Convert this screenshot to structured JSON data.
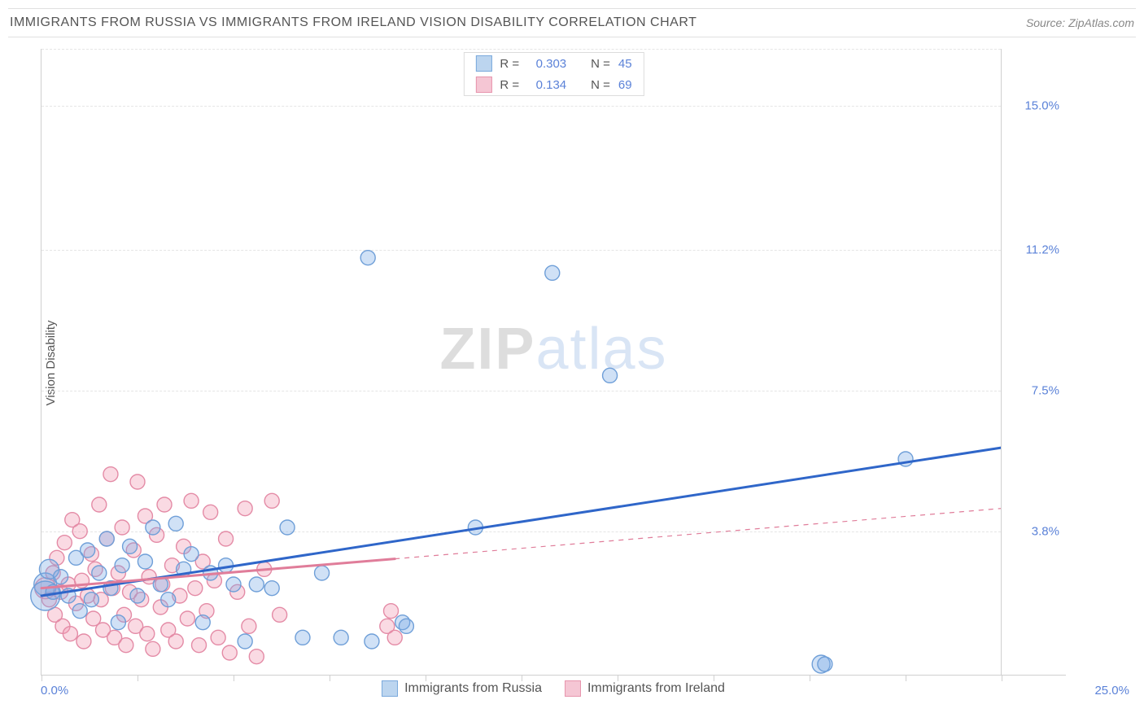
{
  "header": {
    "title": "IMMIGRANTS FROM RUSSIA VS IMMIGRANTS FROM IRELAND VISION DISABILITY CORRELATION CHART",
    "source": "Source: ZipAtlas.com"
  },
  "watermark": {
    "zip": "ZIP",
    "atlas": "atlas"
  },
  "chart": {
    "type": "scatter",
    "y_axis_label": "Vision Disability",
    "background_color": "#ffffff",
    "grid_color": "#e5e5e5",
    "axis_color": "#d0d0d0",
    "text_color": "#555555",
    "value_color": "#5b82d8",
    "xlim": [
      0,
      25
    ],
    "ylim": [
      0,
      16.5
    ],
    "x_tick_positions": [
      0,
      2.5,
      5,
      7.5,
      10,
      12.5,
      15,
      17.5,
      20,
      22.5,
      25
    ],
    "x_min_label": "0.0%",
    "x_max_label": "25.0%",
    "y_gridlines": [
      {
        "value": 3.8,
        "label": "3.8%"
      },
      {
        "value": 7.5,
        "label": "7.5%"
      },
      {
        "value": 11.2,
        "label": "11.2%"
      },
      {
        "value": 15.0,
        "label": "15.0%"
      }
    ],
    "right_pane_width": 80,
    "marker_radius": 9,
    "marker_stroke_width": 1.4,
    "line_width": 3,
    "series": [
      {
        "key": "russia",
        "name": "Immigrants from Russia",
        "fill": "rgba(120,170,230,0.35)",
        "stroke": "#6f9fd8",
        "swatch_fill": "#bcd5ef",
        "swatch_border": "#7aa9dc",
        "r_value": "0.303",
        "n_value": "45",
        "regression": {
          "x1": 0,
          "y1": 2.1,
          "x2": 25,
          "y2": 6.0,
          "solid_until_x": 25,
          "color": "#2f66c9"
        },
        "points": [
          {
            "x": 0.1,
            "y": 2.4,
            "r": 14
          },
          {
            "x": 0.1,
            "y": 2.1,
            "r": 18
          },
          {
            "x": 0.2,
            "y": 2.8,
            "r": 12
          },
          {
            "x": 0.3,
            "y": 2.2
          },
          {
            "x": 0.5,
            "y": 2.6
          },
          {
            "x": 0.7,
            "y": 2.1
          },
          {
            "x": 0.9,
            "y": 3.1
          },
          {
            "x": 1.0,
            "y": 1.7
          },
          {
            "x": 1.2,
            "y": 3.3
          },
          {
            "x": 1.3,
            "y": 2.0
          },
          {
            "x": 1.5,
            "y": 2.7
          },
          {
            "x": 1.7,
            "y": 3.6
          },
          {
            "x": 1.8,
            "y": 2.3
          },
          {
            "x": 2.0,
            "y": 1.4
          },
          {
            "x": 2.1,
            "y": 2.9
          },
          {
            "x": 2.3,
            "y": 3.4
          },
          {
            "x": 2.5,
            "y": 2.1
          },
          {
            "x": 2.7,
            "y": 3.0
          },
          {
            "x": 2.9,
            "y": 3.9
          },
          {
            "x": 3.1,
            "y": 2.4
          },
          {
            "x": 3.3,
            "y": 2.0
          },
          {
            "x": 3.5,
            "y": 4.0
          },
          {
            "x": 3.7,
            "y": 2.8
          },
          {
            "x": 3.9,
            "y": 3.2
          },
          {
            "x": 4.2,
            "y": 1.4
          },
          {
            "x": 4.4,
            "y": 2.7
          },
          {
            "x": 4.8,
            "y": 2.9
          },
          {
            "x": 5.0,
            "y": 2.4
          },
          {
            "x": 5.3,
            "y": 0.9
          },
          {
            "x": 5.6,
            "y": 2.4
          },
          {
            "x": 6.0,
            "y": 2.3
          },
          {
            "x": 6.4,
            "y": 3.9
          },
          {
            "x": 6.8,
            "y": 1.0
          },
          {
            "x": 7.3,
            "y": 2.7
          },
          {
            "x": 7.8,
            "y": 1.0
          },
          {
            "x": 8.5,
            "y": 11.0
          },
          {
            "x": 8.6,
            "y": 0.9
          },
          {
            "x": 9.4,
            "y": 1.4
          },
          {
            "x": 9.5,
            "y": 1.3
          },
          {
            "x": 11.3,
            "y": 3.9
          },
          {
            "x": 13.3,
            "y": 10.6
          },
          {
            "x": 14.8,
            "y": 7.9
          },
          {
            "x": 20.3,
            "y": 0.3,
            "r": 11
          },
          {
            "x": 20.4,
            "y": 0.3
          },
          {
            "x": 22.5,
            "y": 5.7
          }
        ]
      },
      {
        "key": "ireland",
        "name": "Immigrants from Ireland",
        "fill": "rgba(240,150,175,0.35)",
        "stroke": "#e48ba6",
        "swatch_fill": "#f5c6d4",
        "swatch_border": "#e795ad",
        "r_value": "0.134",
        "n_value": "69",
        "regression": {
          "x1": 0,
          "y1": 2.3,
          "x2": 25,
          "y2": 4.4,
          "solid_until_x": 9.2,
          "color": "#e07d9a"
        },
        "points": [
          {
            "x": 0.1,
            "y": 2.3,
            "r": 13
          },
          {
            "x": 0.2,
            "y": 2.0
          },
          {
            "x": 0.3,
            "y": 2.7
          },
          {
            "x": 0.35,
            "y": 1.6
          },
          {
            "x": 0.4,
            "y": 3.1
          },
          {
            "x": 0.5,
            "y": 2.2
          },
          {
            "x": 0.55,
            "y": 1.3
          },
          {
            "x": 0.6,
            "y": 3.5
          },
          {
            "x": 0.7,
            "y": 2.4
          },
          {
            "x": 0.75,
            "y": 1.1
          },
          {
            "x": 0.8,
            "y": 4.1
          },
          {
            "x": 0.9,
            "y": 1.9
          },
          {
            "x": 1.0,
            "y": 3.8
          },
          {
            "x": 1.05,
            "y": 2.5
          },
          {
            "x": 1.1,
            "y": 0.9
          },
          {
            "x": 1.2,
            "y": 2.1
          },
          {
            "x": 1.3,
            "y": 3.2
          },
          {
            "x": 1.35,
            "y": 1.5
          },
          {
            "x": 1.4,
            "y": 2.8
          },
          {
            "x": 1.5,
            "y": 4.5
          },
          {
            "x": 1.55,
            "y": 2.0
          },
          {
            "x": 1.6,
            "y": 1.2
          },
          {
            "x": 1.7,
            "y": 3.6
          },
          {
            "x": 1.8,
            "y": 5.3
          },
          {
            "x": 1.85,
            "y": 2.3
          },
          {
            "x": 1.9,
            "y": 1.0
          },
          {
            "x": 2.0,
            "y": 2.7
          },
          {
            "x": 2.1,
            "y": 3.9
          },
          {
            "x": 2.15,
            "y": 1.6
          },
          {
            "x": 2.2,
            "y": 0.8
          },
          {
            "x": 2.3,
            "y": 2.2
          },
          {
            "x": 2.4,
            "y": 3.3
          },
          {
            "x": 2.45,
            "y": 1.3
          },
          {
            "x": 2.5,
            "y": 5.1
          },
          {
            "x": 2.6,
            "y": 2.0
          },
          {
            "x": 2.7,
            "y": 4.2
          },
          {
            "x": 2.75,
            "y": 1.1
          },
          {
            "x": 2.8,
            "y": 2.6
          },
          {
            "x": 2.9,
            "y": 0.7
          },
          {
            "x": 3.0,
            "y": 3.7
          },
          {
            "x": 3.1,
            "y": 1.8
          },
          {
            "x": 3.15,
            "y": 2.4
          },
          {
            "x": 3.2,
            "y": 4.5
          },
          {
            "x": 3.3,
            "y": 1.2
          },
          {
            "x": 3.4,
            "y": 2.9
          },
          {
            "x": 3.5,
            "y": 0.9
          },
          {
            "x": 3.6,
            "y": 2.1
          },
          {
            "x": 3.7,
            "y": 3.4
          },
          {
            "x": 3.8,
            "y": 1.5
          },
          {
            "x": 3.9,
            "y": 4.6
          },
          {
            "x": 4.0,
            "y": 2.3
          },
          {
            "x": 4.1,
            "y": 0.8
          },
          {
            "x": 4.2,
            "y": 3.0
          },
          {
            "x": 4.3,
            "y": 1.7
          },
          {
            "x": 4.4,
            "y": 4.3
          },
          {
            "x": 4.5,
            "y": 2.5
          },
          {
            "x": 4.6,
            "y": 1.0
          },
          {
            "x": 4.8,
            "y": 3.6
          },
          {
            "x": 4.9,
            "y": 0.6
          },
          {
            "x": 5.1,
            "y": 2.2
          },
          {
            "x": 5.3,
            "y": 4.4
          },
          {
            "x": 5.4,
            "y": 1.3
          },
          {
            "x": 5.6,
            "y": 0.5
          },
          {
            "x": 5.8,
            "y": 2.8
          },
          {
            "x": 6.0,
            "y": 4.6
          },
          {
            "x": 6.2,
            "y": 1.6
          },
          {
            "x": 9.0,
            "y": 1.3
          },
          {
            "x": 9.1,
            "y": 1.7
          },
          {
            "x": 9.2,
            "y": 1.0
          }
        ]
      }
    ],
    "legend_top": {
      "r_label": "R =",
      "n_label": "N ="
    },
    "legend_bottom": {
      "series": [
        "russia",
        "ireland"
      ]
    }
  }
}
